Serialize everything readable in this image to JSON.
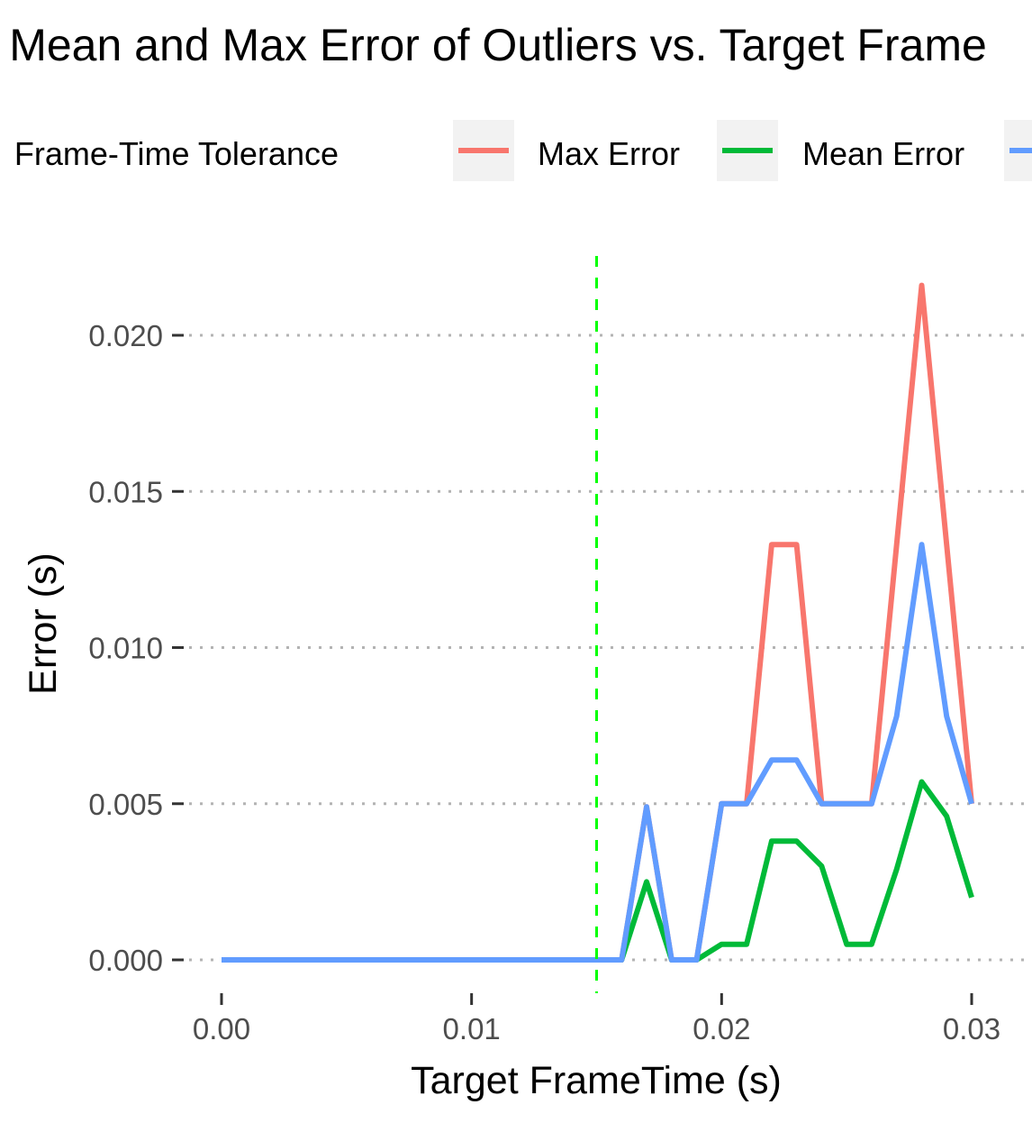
{
  "chart_data": {
    "type": "line",
    "title": "Mean and Max Error of Outliers vs. Target Frame",
    "xlabel": "Target FrameTime (s)",
    "ylabel": "Error (s)",
    "xlim": [
      0.0,
      0.03
    ],
    "ylim": [
      0.0,
      0.02
    ],
    "x_ticks": [
      "0.00",
      "0.01",
      "0.02",
      "0.03"
    ],
    "y_ticks": [
      "0.000",
      "0.005",
      "0.010",
      "0.015",
      "0.020"
    ],
    "grid": "horizontal dotted",
    "legend_position": "top",
    "legend_entries": [
      "Frame-Time Tolerance",
      "Max Error",
      "Mean Error"
    ],
    "x": [
      0.0,
      0.001,
      0.002,
      0.003,
      0.004,
      0.005,
      0.006,
      0.007,
      0.008,
      0.009,
      0.01,
      0.011,
      0.012,
      0.013,
      0.014,
      0.015,
      0.016,
      0.017,
      0.018,
      0.019,
      0.02,
      0.021,
      0.022,
      0.023,
      0.024,
      0.025,
      0.026,
      0.027,
      0.028,
      0.029,
      0.03
    ],
    "series": [
      {
        "name": "Max Error",
        "color": "#F8766D",
        "values": [
          0,
          0,
          0,
          0,
          0,
          0,
          0,
          0,
          0,
          0,
          0,
          0,
          0,
          0,
          0,
          0,
          0,
          0.0049,
          0,
          0,
          0.005,
          0.005,
          0.0133,
          0.0133,
          0.005,
          0.005,
          0.005,
          0.0133,
          0.0216,
          0.0133,
          0.005
        ]
      },
      {
        "name": "Mean Error",
        "color": "#00BA38",
        "values": [
          0,
          0,
          0,
          0,
          0,
          0,
          0,
          0,
          0,
          0,
          0,
          0,
          0,
          0,
          0,
          0,
          0,
          0.0025,
          0,
          0,
          0.0005,
          0.0005,
          0.0038,
          0.0038,
          0.003,
          0.0005,
          0.0005,
          0.0029,
          0.0057,
          0.0046,
          0.002
        ]
      },
      {
        "color": "#619CFF",
        "values": [
          0,
          0,
          0,
          0,
          0,
          0,
          0,
          0,
          0,
          0,
          0,
          0,
          0,
          0,
          0,
          0,
          0,
          0.0049,
          0,
          0,
          0.005,
          0.005,
          0.0064,
          0.0064,
          0.005,
          0.005,
          0.005,
          0.0078,
          0.0133,
          0.0078,
          0.005
        ]
      }
    ],
    "vline": {
      "name": "Frame-Time Tolerance",
      "x": 0.015,
      "color": "#00FF00",
      "style": "dashed"
    }
  }
}
